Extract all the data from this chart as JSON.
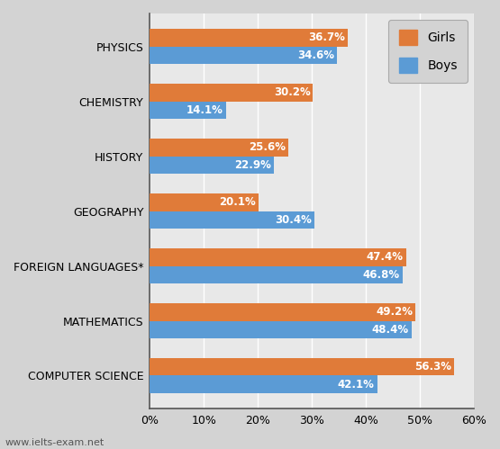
{
  "categories": [
    "COMPUTER SCIENCE",
    "MATHEMATICS",
    "FOREIGN LANGUAGES*",
    "GEOGRAPHY",
    "HISTORY",
    "CHEMISTRY",
    "PHYSICS"
  ],
  "girls": [
    56.3,
    49.2,
    47.4,
    20.1,
    25.6,
    30.2,
    36.7
  ],
  "boys": [
    42.1,
    48.4,
    46.8,
    30.4,
    22.9,
    14.1,
    34.6
  ],
  "girls_color": "#E07B39",
  "boys_color": "#5B9BD5",
  "bar_height": 0.32,
  "xlim": [
    0,
    60
  ],
  "xticks": [
    0,
    10,
    20,
    30,
    40,
    50,
    60
  ],
  "xtick_labels": [
    "0%",
    "10%",
    "20%",
    "30%",
    "40%",
    "50%",
    "60%"
  ],
  "label_fontsize": 8.5,
  "tick_fontsize": 9,
  "category_fontsize": 9,
  "legend_labels": [
    "Girls",
    "Boys"
  ],
  "watermark": "www.ielts-exam.net",
  "bg_color": "#D3D3D3",
  "plot_bg_color": "#E8E8E8"
}
